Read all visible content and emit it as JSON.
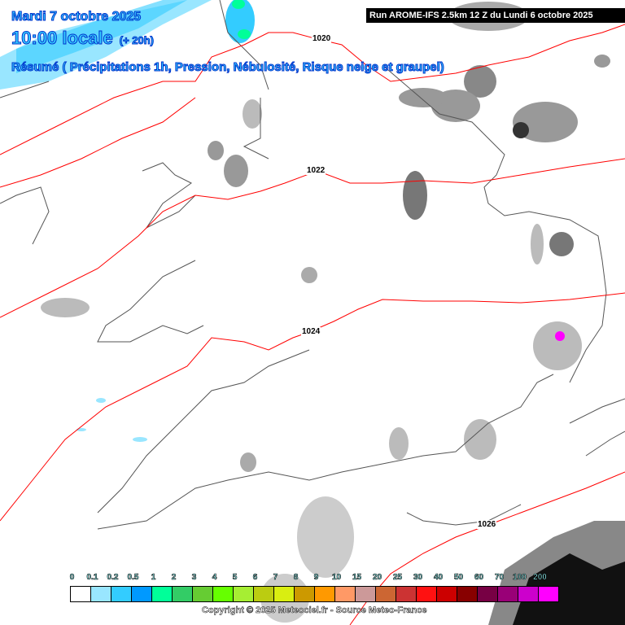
{
  "header": {
    "date": "Mardi 7 octobre 2025",
    "time": "10:00 locale",
    "offset": "(+ 20h)",
    "summary": "Résumé ( Précipitations 1h, Pression, Nébulosité, Risque neige et graupel)",
    "run": "Run AROME-IFS 2.5km 12 Z du Lundi 6 octobre 2025"
  },
  "isobars": [
    {
      "label": "1020"
    },
    {
      "label": "1022"
    },
    {
      "label": "1024"
    },
    {
      "label": "1026"
    }
  ],
  "legend": {
    "labels": [
      "0",
      "0.1",
      "0.2",
      "0.5",
      "1",
      "2",
      "3",
      "4",
      "5",
      "6",
      "7",
      "8",
      "9",
      "10",
      "15",
      "20",
      "25",
      "30",
      "40",
      "50",
      "60",
      "70",
      "100",
      "200"
    ],
    "colors": [
      "#ffffff",
      "#99e6ff",
      "#33ccff",
      "#0099ff",
      "#00ff99",
      "#33cc66",
      "#66cc33",
      "#66ff00",
      "#a6ee33",
      "#bbcc11",
      "#d9ee11",
      "#cc9900",
      "#ff9900",
      "#ff9966",
      "#cc9999",
      "#cc6633",
      "#cc3333",
      "#ff1111",
      "#cc0000",
      "#880000",
      "#770044",
      "#990077",
      "#cc00cc",
      "#ff00ff"
    ]
  },
  "copyright": "Copyright © 2025 Meteociel.fr - Source Meteo-France",
  "colors": {
    "isobar": "#ff0000",
    "coast": "#555555",
    "title": "#33ccff"
  }
}
